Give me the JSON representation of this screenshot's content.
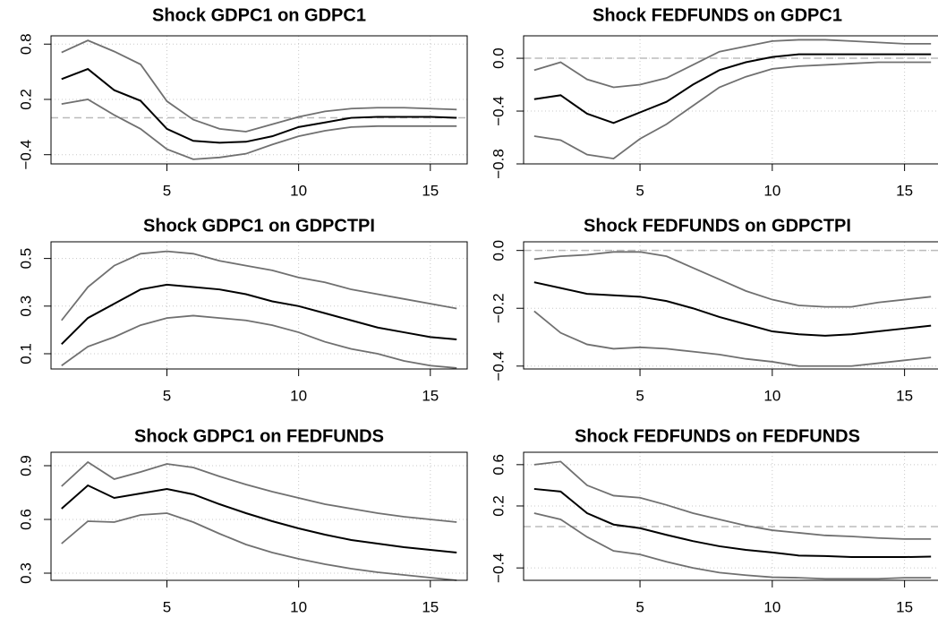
{
  "chart_data": [
    {
      "type": "line",
      "title": "Shock GDPC1 on GDPC1",
      "x": [
        1,
        2,
        3,
        4,
        5,
        6,
        7,
        8,
        9,
        10,
        11,
        12,
        13,
        14,
        15,
        16
      ],
      "xlim": [
        0.6,
        16.4
      ],
      "xticks": [
        5,
        10,
        15
      ],
      "ylim": [
        -0.5,
        0.89
      ],
      "yticks": [
        {
          "value": -0.4,
          "label": "−0.4"
        },
        0.2,
        0.8
      ],
      "hline": 0,
      "grid": true,
      "series": [
        {
          "color": "#707070",
          "values": [
            0.71,
            0.84,
            0.72,
            0.58,
            0.18,
            -0.02,
            -0.12,
            -0.15,
            -0.07,
            0.01,
            0.07,
            0.1,
            0.11,
            0.11,
            0.1,
            0.09
          ]
        },
        {
          "color": "#000000",
          "values": [
            0.42,
            0.53,
            0.3,
            0.185,
            -0.12,
            -0.25,
            -0.27,
            -0.26,
            -0.2,
            -0.1,
            -0.05,
            0,
            0.01,
            0.01,
            0.01,
            0
          ]
        },
        {
          "color": "#707070",
          "values": [
            0.15,
            0.2,
            0.03,
            -0.12,
            -0.34,
            -0.45,
            -0.43,
            -0.39,
            -0.29,
            -0.2,
            -0.14,
            -0.1,
            -0.09,
            -0.09,
            -0.09,
            -0.09
          ]
        }
      ]
    },
    {
      "type": "line",
      "title": "Shock FEDFUNDS on GDPC1",
      "x": [
        1,
        2,
        3,
        4,
        5,
        6,
        7,
        8,
        9,
        10,
        11,
        12,
        13,
        14,
        15,
        16
      ],
      "xlim": [
        0.6,
        16.4
      ],
      "xticks": [
        5,
        10,
        15
      ],
      "ylim": [
        -0.8,
        0.17
      ],
      "yticks": [
        {
          "value": 0,
          "label": "0.0"
        },
        {
          "value": -0.4,
          "label": "−0.4"
        },
        {
          "value": -0.8,
          "label": "−0.8"
        }
      ],
      "hline": 0,
      "grid": true,
      "series": [
        {
          "color": "#707070",
          "values": [
            -0.09,
            -0.03,
            -0.16,
            -0.22,
            -0.2,
            -0.15,
            -0.05,
            0.05,
            0.09,
            0.13,
            0.14,
            0.14,
            0.13,
            0.12,
            0.11,
            0.11
          ]
        },
        {
          "color": "#000000",
          "values": [
            -0.31,
            -0.28,
            -0.42,
            -0.49,
            -0.41,
            -0.33,
            -0.2,
            -0.09,
            -0.03,
            0.01,
            0.03,
            0.03,
            0.03,
            0.03,
            0.03,
            0.03
          ]
        },
        {
          "color": "#707070",
          "values": [
            -0.59,
            -0.62,
            -0.73,
            -0.76,
            -0.61,
            -0.5,
            -0.36,
            -0.22,
            -0.14,
            -0.08,
            -0.06,
            -0.05,
            -0.04,
            -0.03,
            -0.03,
            -0.03
          ]
        }
      ]
    },
    {
      "type": "line",
      "title": "Shock GDPC1 on GDPCTPI",
      "x": [
        1,
        2,
        3,
        4,
        5,
        6,
        7,
        8,
        9,
        10,
        11,
        12,
        13,
        14,
        15,
        16
      ],
      "xlim": [
        0.6,
        16.4
      ],
      "xticks": [
        5,
        10,
        15
      ],
      "ylim": [
        0.036,
        0.57
      ],
      "yticks": [
        0.1,
        0.3,
        0.5
      ],
      "grid": true,
      "series": [
        {
          "color": "#707070",
          "values": [
            0.24,
            0.38,
            0.47,
            0.52,
            0.53,
            0.52,
            0.49,
            0.47,
            0.45,
            0.42,
            0.4,
            0.37,
            0.35,
            0.33,
            0.31,
            0.29
          ]
        },
        {
          "color": "#000000",
          "values": [
            0.14,
            0.25,
            0.31,
            0.37,
            0.39,
            0.38,
            0.37,
            0.35,
            0.32,
            0.3,
            0.27,
            0.24,
            0.21,
            0.19,
            0.17,
            0.16
          ]
        },
        {
          "color": "#707070",
          "values": [
            0.05,
            0.13,
            0.17,
            0.22,
            0.25,
            0.26,
            0.25,
            0.24,
            0.22,
            0.19,
            0.15,
            0.12,
            0.1,
            0.07,
            0.05,
            0.04
          ]
        }
      ]
    },
    {
      "type": "line",
      "title": "Shock FEDFUNDS on GDPCTPI",
      "x": [
        1,
        2,
        3,
        4,
        5,
        6,
        7,
        8,
        9,
        10,
        11,
        12,
        13,
        14,
        15,
        16
      ],
      "xlim": [
        0.6,
        16.4
      ],
      "xticks": [
        5,
        10,
        15
      ],
      "ylim": [
        -0.41,
        0.03
      ],
      "yticks": [
        {
          "value": 0,
          "label": "0.0"
        },
        {
          "value": -0.2,
          "label": "−0.2"
        },
        {
          "value": -0.4,
          "label": "−0.4"
        }
      ],
      "hline": 0,
      "grid": true,
      "series": [
        {
          "color": "#707070",
          "values": [
            -0.03,
            -0.02,
            -0.015,
            -0.005,
            -0.005,
            -0.02,
            -0.06,
            -0.1,
            -0.14,
            -0.17,
            -0.19,
            -0.195,
            -0.195,
            -0.18,
            -0.17,
            -0.16
          ]
        },
        {
          "color": "#000000",
          "values": [
            -0.11,
            -0.13,
            -0.15,
            -0.155,
            -0.16,
            -0.175,
            -0.2,
            -0.23,
            -0.255,
            -0.28,
            -0.29,
            -0.295,
            -0.29,
            -0.28,
            -0.27,
            -0.26
          ]
        },
        {
          "color": "#707070",
          "values": [
            -0.21,
            -0.285,
            -0.325,
            -0.34,
            -0.335,
            -0.34,
            -0.35,
            -0.36,
            -0.375,
            -0.385,
            -0.4,
            -0.4,
            -0.4,
            -0.39,
            -0.38,
            -0.37
          ]
        }
      ]
    },
    {
      "type": "line",
      "title": "Shock GDPC1 on FEDFUNDS",
      "x": [
        1,
        2,
        3,
        4,
        5,
        6,
        7,
        8,
        9,
        10,
        11,
        12,
        13,
        14,
        15,
        16
      ],
      "xlim": [
        0.6,
        16.4
      ],
      "xticks": [
        5,
        10,
        15
      ],
      "ylim": [
        0.26,
        0.975
      ],
      "yticks": [
        0.3,
        0.6,
        0.9
      ],
      "grid": true,
      "series": [
        {
          "color": "#707070",
          "values": [
            0.785,
            0.92,
            0.825,
            0.865,
            0.91,
            0.89,
            0.84,
            0.795,
            0.755,
            0.72,
            0.685,
            0.66,
            0.635,
            0.615,
            0.6,
            0.585
          ]
        },
        {
          "color": "#000000",
          "values": [
            0.66,
            0.79,
            0.72,
            0.745,
            0.77,
            0.74,
            0.685,
            0.635,
            0.59,
            0.55,
            0.515,
            0.485,
            0.465,
            0.445,
            0.43,
            0.415
          ]
        },
        {
          "color": "#707070",
          "values": [
            0.465,
            0.59,
            0.585,
            0.625,
            0.635,
            0.585,
            0.52,
            0.46,
            0.415,
            0.38,
            0.35,
            0.325,
            0.305,
            0.29,
            0.275,
            0.26
          ]
        }
      ]
    },
    {
      "type": "line",
      "title": "Shock FEDFUNDS on FEDFUNDS",
      "x": [
        1,
        2,
        3,
        4,
        5,
        6,
        7,
        8,
        9,
        10,
        11,
        12,
        13,
        14,
        15,
        16
      ],
      "xlim": [
        0.6,
        16.4
      ],
      "xticks": [
        5,
        10,
        15
      ],
      "ylim": [
        -0.52,
        0.72
      ],
      "yticks": [
        {
          "value": -0.4,
          "label": "−0.4"
        },
        0.2,
        0.6
      ],
      "hline": 0,
      "grid": true,
      "series": [
        {
          "color": "#707070",
          "values": [
            0.6,
            0.63,
            0.4,
            0.3,
            0.28,
            0.21,
            0.13,
            0.07,
            0.01,
            -0.035,
            -0.06,
            -0.085,
            -0.095,
            -0.11,
            -0.12,
            -0.12
          ]
        },
        {
          "color": "#000000",
          "values": [
            0.365,
            0.34,
            0.13,
            0.02,
            -0.015,
            -0.08,
            -0.14,
            -0.19,
            -0.225,
            -0.25,
            -0.28,
            -0.285,
            -0.295,
            -0.295,
            -0.295,
            -0.29
          ]
        },
        {
          "color": "#707070",
          "values": [
            0.13,
            0.07,
            -0.1,
            -0.235,
            -0.27,
            -0.34,
            -0.4,
            -0.445,
            -0.47,
            -0.49,
            -0.495,
            -0.505,
            -0.505,
            -0.505,
            -0.495,
            -0.495
          ]
        }
      ]
    }
  ]
}
